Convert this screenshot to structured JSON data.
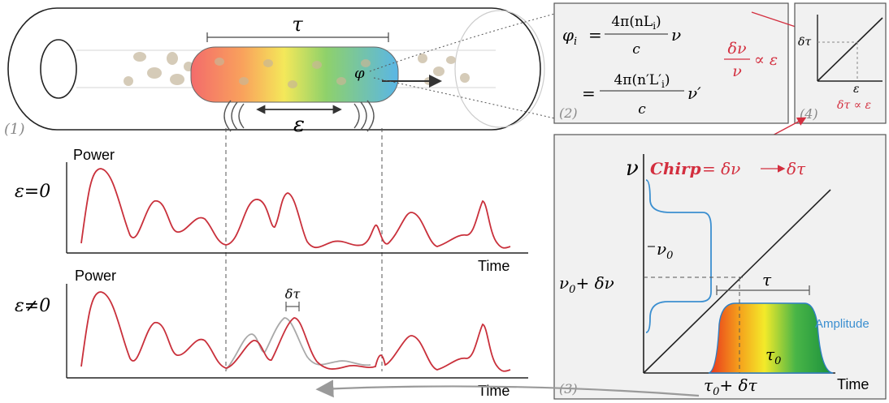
{
  "panel_labels": {
    "p1": "(1)",
    "p2": "(2)",
    "p3": "(3)",
    "p4": "(4)"
  },
  "fiber": {
    "tau": "τ",
    "epsilon": "ε",
    "phi": "φ"
  },
  "eq": {
    "line1_lhs": "φ",
    "line1_lhs_sub": "i",
    "line1_num": "4π(nL",
    "line1_num_sub": "i",
    "line1_num_end": ")",
    "line1_den": "c",
    "line1_var": "ν",
    "line2_num": "4π(n′L′",
    "line2_num_sub": "i",
    "line2_num_end": ")",
    "line2_den": "c",
    "line2_var": "ν′",
    "ratio_num": "δν",
    "ratio_den": "ν",
    "ratio_rel": "∝ ε",
    "eq_sign": "="
  },
  "panel4": {
    "ylabel": "δτ",
    "xlabel": "ε",
    "relation": "δτ ∝ ε"
  },
  "chirp": {
    "label": "Chirp",
    "expr": "= δν",
    "result": "δτ"
  },
  "panel3": {
    "nu": "ν",
    "nu0": "ν",
    "nu0_sub": "0",
    "nu_delta": "ν",
    "nu_delta_sub": "0",
    "nu_delta_end": "+ δν",
    "tau": "τ",
    "tau0": "τ",
    "tau0_sub": "0",
    "tau_delta": "τ",
    "tau_delta_sub": "0",
    "tau_delta_end": "+ δτ",
    "amplitude": "Amplitude",
    "time": "Time"
  },
  "plot_top": {
    "eps_label": "ε=0",
    "ylabel": "Power",
    "xlabel": "Time"
  },
  "plot_bottom": {
    "eps_label": "ε≠0",
    "ylabel": "Power",
    "xlabel": "Time",
    "shift": "δτ"
  },
  "colors": {
    "red": "#d32f3f",
    "blue": "#3b8fd0",
    "gray": "#9a9a9a",
    "panel_bg": "#f1f1f1"
  }
}
